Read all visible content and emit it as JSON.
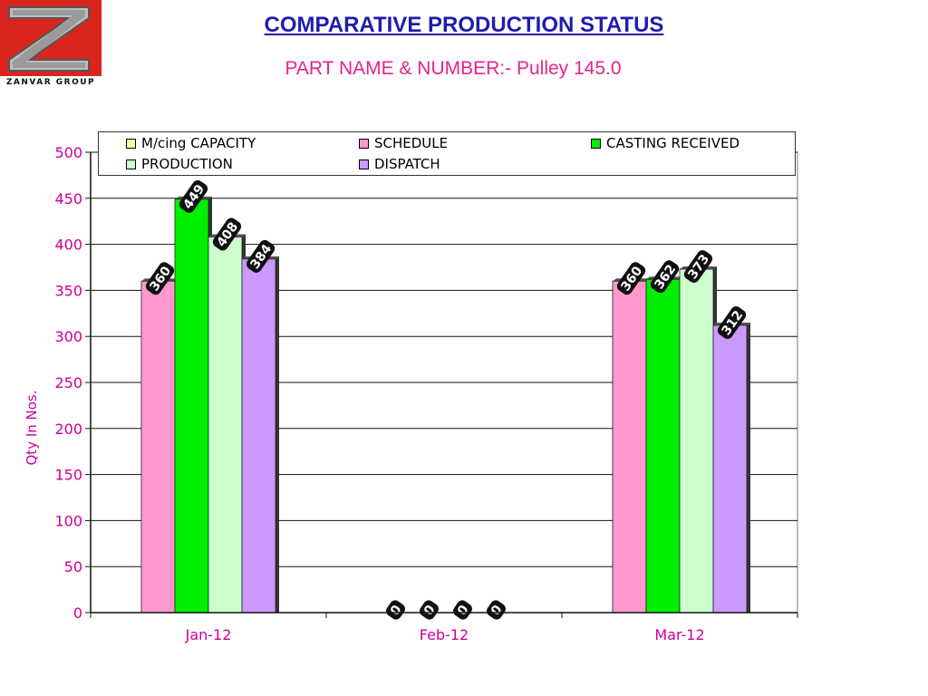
{
  "logo": {
    "text": "ZANVAR GROUP",
    "mark": "Z"
  },
  "title": "COMPARATIVE PRODUCTION STATUS",
  "subtitle": "PART NAME & NUMBER:- Pulley 145.0",
  "chart_data": {
    "type": "bar",
    "categories": [
      "Jan-12",
      "Feb-12",
      "Mar-12"
    ],
    "series": [
      {
        "name": "M/cing CAPACITY",
        "color": "#ffffa0",
        "values": [
          null,
          null,
          null
        ]
      },
      {
        "name": "SCHEDULE",
        "color": "#ff99cc",
        "values": [
          360,
          0,
          360
        ]
      },
      {
        "name": "CASTING RECEIVED",
        "color": "#00ee00",
        "values": [
          449,
          0,
          362
        ]
      },
      {
        "name": "PRODUCTION",
        "color": "#ccffcc",
        "values": [
          408,
          0,
          373
        ]
      },
      {
        "name": "DISPATCH",
        "color": "#cc99ff",
        "values": [
          384,
          0,
          312
        ]
      }
    ],
    "ylabel": "Qty In  Nos.",
    "xlabel": "",
    "ylim": [
      0,
      500
    ],
    "yticks": [
      "0",
      "50",
      "100",
      "150",
      "200",
      "250",
      "300",
      "350",
      "400",
      "450",
      "500"
    ],
    "grid": true,
    "legend_position": "top",
    "axis_label_color": "#cc0099"
  }
}
